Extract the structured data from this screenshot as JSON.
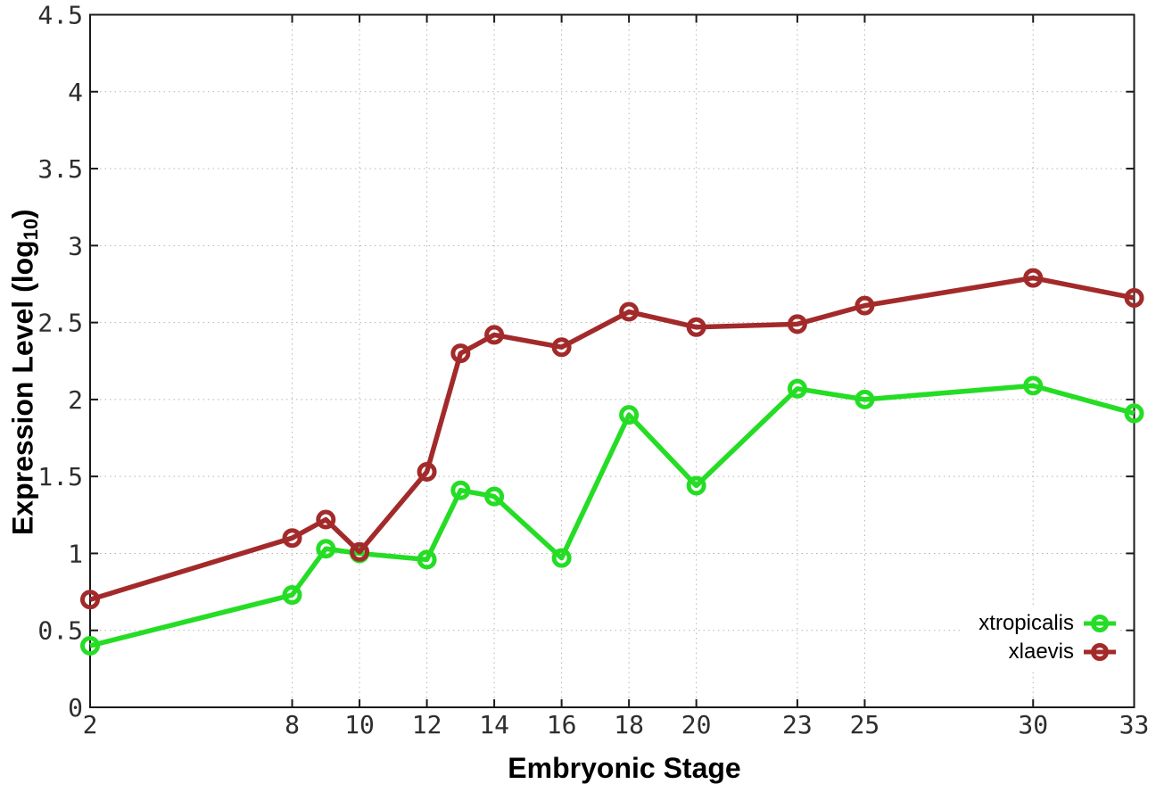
{
  "chart_data": {
    "type": "line",
    "title": "",
    "xlabel": "Embryonic Stage",
    "ylabel": {
      "pre": "Expression Level (log",
      "sub": "10",
      "post": ")"
    },
    "xlim": [
      2,
      33
    ],
    "ylim": [
      0,
      4.5
    ],
    "grid": true,
    "legend_position": "bottom-right-inside",
    "marker": "open-circle",
    "xticks": {
      "values": [
        2,
        8,
        10,
        12,
        14,
        16,
        18,
        20,
        23,
        25,
        30,
        33
      ],
      "labels": [
        "2",
        "8",
        "10",
        "12",
        "14",
        "16",
        "18",
        "20",
        "23",
        "25",
        "30",
        "33"
      ]
    },
    "yticks": {
      "values": [
        0,
        0.5,
        1,
        1.5,
        2,
        2.5,
        3,
        3.5,
        4,
        4.5
      ],
      "labels": [
        "0",
        "0.5",
        "1",
        "1.5",
        "2",
        "2.5",
        "3",
        "3.5",
        "4",
        "4.5"
      ]
    },
    "x": [
      2,
      8,
      9,
      10,
      12,
      13,
      14,
      16,
      18,
      20,
      23,
      25,
      30,
      33
    ],
    "series": [
      {
        "name": "xtropicalis",
        "color": "#24dd24",
        "values": [
          0.4,
          0.73,
          1.03,
          1.0,
          0.96,
          1.41,
          1.37,
          0.97,
          1.9,
          1.44,
          2.07,
          2.0,
          2.09,
          1.91
        ]
      },
      {
        "name": "xlaevis",
        "color": "#a32a2a",
        "values": [
          0.7,
          1.1,
          1.22,
          1.01,
          1.53,
          2.3,
          2.42,
          2.34,
          2.57,
          2.47,
          2.49,
          2.61,
          2.79,
          2.66
        ]
      }
    ],
    "colors": {
      "border": "#1a1a1a",
      "grid": "#b4b4b4",
      "tick_text": "#2e2e2e"
    }
  }
}
